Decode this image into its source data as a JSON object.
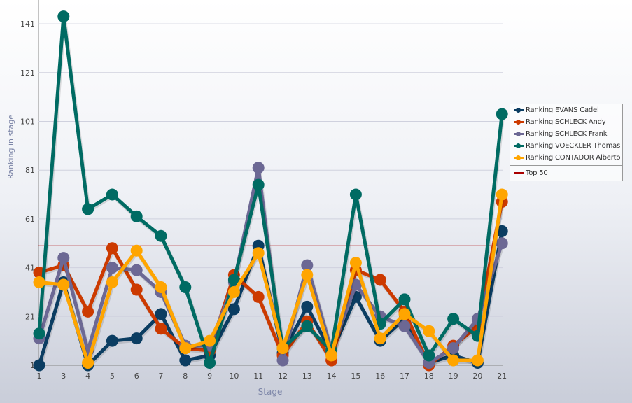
{
  "chart_data": {
    "type": "line",
    "title": "",
    "xlabel": "Stage",
    "ylabel": "Ranking in stage",
    "categories": [
      "1",
      "3",
      "4",
      "5",
      "6",
      "7",
      "8",
      "9",
      "10",
      "11",
      "12",
      "13",
      "14",
      "15",
      "16",
      "17",
      "18",
      "19",
      "20",
      "21"
    ],
    "yticks": [
      1,
      21,
      41,
      61,
      81,
      101,
      121,
      141
    ],
    "ylim": [
      1,
      150
    ],
    "grid": true,
    "legend_placement": "right",
    "series": [
      {
        "name": "Ranking EVANS Cadel",
        "color": "#0b3d62",
        "values": [
          1,
          35,
          1,
          11,
          12,
          22,
          3,
          5,
          24,
          50,
          6,
          25,
          6,
          29,
          11,
          20,
          2,
          5,
          2,
          56
        ]
      },
      {
        "name": "Ranking SCHLECK Andy",
        "color": "#cc3a00",
        "values": [
          39,
          42,
          23,
          49,
          32,
          16,
          8,
          7,
          38,
          29,
          5,
          19,
          3,
          40,
          36,
          23,
          1,
          9,
          17,
          68
        ]
      },
      {
        "name": "Ranking SCHLECK Frank",
        "color": "#6c6894",
        "values": [
          12,
          45,
          7,
          41,
          40,
          31,
          9,
          9,
          35,
          82,
          3,
          42,
          7,
          34,
          21,
          17,
          2,
          8,
          20,
          51
        ]
      },
      {
        "name": "Ranking VOECKLER Thomas",
        "color": "#006b63",
        "values": [
          14,
          144,
          65,
          71,
          62,
          54,
          33,
          2,
          36,
          75,
          8,
          17,
          7,
          71,
          18,
          28,
          5,
          20,
          13,
          104
        ]
      },
      {
        "name": "Ranking CONTADOR Alberto",
        "color": "#ffa500",
        "values": [
          35,
          34,
          2,
          35,
          48,
          33,
          8,
          11,
          31,
          47,
          8,
          38,
          5,
          43,
          12,
          22,
          15,
          3,
          3,
          71
        ]
      }
    ],
    "reference_line": {
      "name": "Top 50",
      "value": 50,
      "color": "#aa0000"
    }
  }
}
